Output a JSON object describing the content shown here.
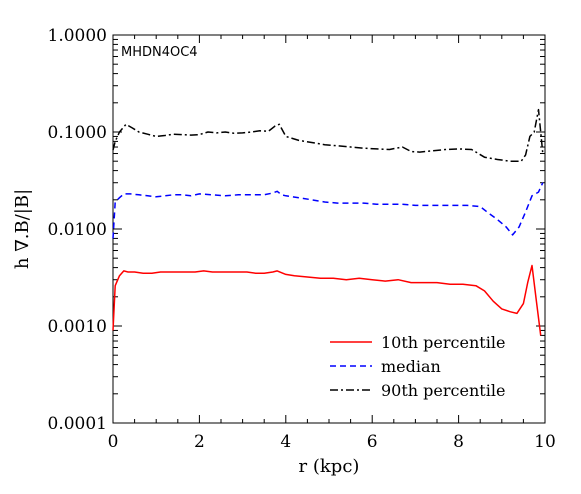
{
  "chart_data": {
    "type": "line",
    "model_label": "MHDN4OC4",
    "xlabel": "r (kpc)",
    "ylabel": "h ∇.B/|B|",
    "xlim": [
      0,
      10
    ],
    "ylim": [
      0.0001,
      1.0
    ],
    "yscale": "log",
    "xticks": [
      0,
      2,
      4,
      6,
      8,
      10
    ],
    "xtick_labels": [
      "0",
      "2",
      "4",
      "6",
      "8",
      "10"
    ],
    "yticks": [
      0.0001,
      0.001,
      0.01,
      0.1,
      1.0
    ],
    "ytick_labels": [
      "0.0001",
      "0.0010",
      "0.0100",
      "0.1000",
      "1.0000"
    ],
    "grid": false,
    "legend_position": "bottom-right",
    "series": [
      {
        "name": "10th percentile",
        "color": "#ff0000",
        "dash": "solid",
        "x": [
          0.0,
          0.05,
          0.15,
          0.25,
          0.35,
          0.5,
          0.7,
          0.9,
          1.1,
          1.3,
          1.5,
          1.7,
          1.9,
          2.1,
          2.3,
          2.5,
          2.7,
          2.9,
          3.1,
          3.3,
          3.5,
          3.7,
          3.8,
          4.0,
          4.2,
          4.5,
          4.8,
          5.1,
          5.4,
          5.7,
          6.0,
          6.3,
          6.6,
          6.9,
          7.2,
          7.5,
          7.8,
          8.1,
          8.4,
          8.6,
          8.8,
          9.0,
          9.2,
          9.35,
          9.5,
          9.6,
          9.7,
          9.8,
          9.9
        ],
        "y": [
          0.0009,
          0.0026,
          0.0033,
          0.0037,
          0.0036,
          0.0036,
          0.0035,
          0.0035,
          0.0036,
          0.0036,
          0.0036,
          0.0036,
          0.0036,
          0.0037,
          0.0036,
          0.0036,
          0.0036,
          0.0036,
          0.0036,
          0.0035,
          0.0035,
          0.0036,
          0.0037,
          0.0034,
          0.0033,
          0.0032,
          0.0031,
          0.0031,
          0.003,
          0.0031,
          0.003,
          0.0029,
          0.003,
          0.0028,
          0.0028,
          0.0028,
          0.0027,
          0.0027,
          0.0026,
          0.0023,
          0.0018,
          0.0015,
          0.0014,
          0.00135,
          0.0017,
          0.0028,
          0.0042,
          0.0018,
          0.0008
        ]
      },
      {
        "name": "median",
        "color": "#0000ff",
        "dash": "dashed",
        "x": [
          0.0,
          0.05,
          0.15,
          0.25,
          0.4,
          0.6,
          0.8,
          1.0,
          1.2,
          1.4,
          1.6,
          1.8,
          2.0,
          2.3,
          2.6,
          2.9,
          3.2,
          3.5,
          3.7,
          3.8,
          3.9,
          4.0,
          4.3,
          4.6,
          4.9,
          5.2,
          5.5,
          5.8,
          6.1,
          6.4,
          6.7,
          7.0,
          7.3,
          7.6,
          7.9,
          8.2,
          8.5,
          8.7,
          8.9,
          9.1,
          9.25,
          9.4,
          9.55,
          9.7,
          9.85,
          9.95
        ],
        "y": [
          0.008,
          0.019,
          0.021,
          0.023,
          0.023,
          0.0225,
          0.022,
          0.0215,
          0.022,
          0.0225,
          0.0225,
          0.022,
          0.023,
          0.0225,
          0.022,
          0.0225,
          0.0225,
          0.0225,
          0.0235,
          0.0245,
          0.0225,
          0.022,
          0.021,
          0.02,
          0.019,
          0.0185,
          0.0185,
          0.0185,
          0.018,
          0.018,
          0.018,
          0.0175,
          0.0175,
          0.0175,
          0.0175,
          0.0175,
          0.017,
          0.0145,
          0.0125,
          0.0105,
          0.0087,
          0.0105,
          0.015,
          0.022,
          0.024,
          0.03
        ]
      },
      {
        "name": "90th percentile",
        "color": "#000000",
        "dash": "dashdot",
        "x": [
          0.0,
          0.05,
          0.15,
          0.3,
          0.45,
          0.6,
          0.8,
          1.0,
          1.2,
          1.4,
          1.6,
          1.8,
          2.0,
          2.2,
          2.4,
          2.6,
          2.8,
          3.0,
          3.2,
          3.4,
          3.6,
          3.75,
          3.85,
          4.0,
          4.3,
          4.6,
          4.9,
          5.2,
          5.5,
          5.8,
          6.1,
          6.4,
          6.7,
          6.9,
          7.1,
          7.4,
          7.7,
          8.0,
          8.3,
          8.6,
          8.9,
          9.2,
          9.45,
          9.55,
          9.65,
          9.75,
          9.85,
          9.95
        ],
        "y": [
          0.065,
          0.08,
          0.1,
          0.12,
          0.11,
          0.1,
          0.095,
          0.09,
          0.092,
          0.095,
          0.094,
          0.093,
          0.094,
          0.1,
          0.098,
          0.1,
          0.097,
          0.098,
          0.1,
          0.103,
          0.102,
          0.115,
          0.12,
          0.09,
          0.082,
          0.078,
          0.074,
          0.072,
          0.07,
          0.068,
          0.067,
          0.066,
          0.07,
          0.063,
          0.062,
          0.064,
          0.066,
          0.067,
          0.066,
          0.055,
          0.052,
          0.05,
          0.05,
          0.058,
          0.09,
          0.1,
          0.17,
          0.06
        ]
      }
    ]
  }
}
